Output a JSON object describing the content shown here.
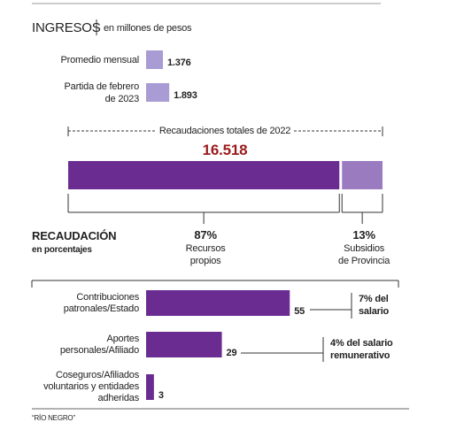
{
  "chart_data": [
    {
      "type": "bar",
      "orientation": "horizontal",
      "title": "INGRESOS",
      "subtitle": "en millones de pesos",
      "categories": [
        "Promedio mensual",
        "Partida de febrero\nde 2023"
      ],
      "values": [
        1376,
        1893
      ],
      "value_labels": [
        "1.376",
        "1.893"
      ],
      "color": "#a99bd3"
    },
    {
      "type": "stacked-bar",
      "title": "Recaudaciones totales de 2022",
      "value": 16518,
      "value_label": "16.518",
      "series": [
        {
          "name": "Recursos\npropios",
          "color": "#6a2c91",
          "values": [
            87
          ],
          "value_labels": [
            "87%"
          ]
        },
        {
          "name": "Subsidios\nde Provincia",
          "color": "#9a7bc0",
          "values": [
            13
          ],
          "value_labels": [
            "13%"
          ]
        }
      ]
    },
    {
      "type": "bar",
      "orientation": "horizontal",
      "title": "RECAUDACIÓN",
      "subtitle": "en porcentajes",
      "categories": [
        "Contribuciones\npatronales/Estado",
        "Aportes\npersonales/Afiliado",
        "Coseguros/Afiliados\nvoluntarios y entidades\nadheridas"
      ],
      "values": [
        55,
        29,
        3
      ],
      "color": "#6a2c91",
      "annotations": [
        "7% del\nsalario",
        "4% del salario\nremunerativo",
        null
      ]
    }
  ],
  "source": "“RÍO NEGRO”"
}
